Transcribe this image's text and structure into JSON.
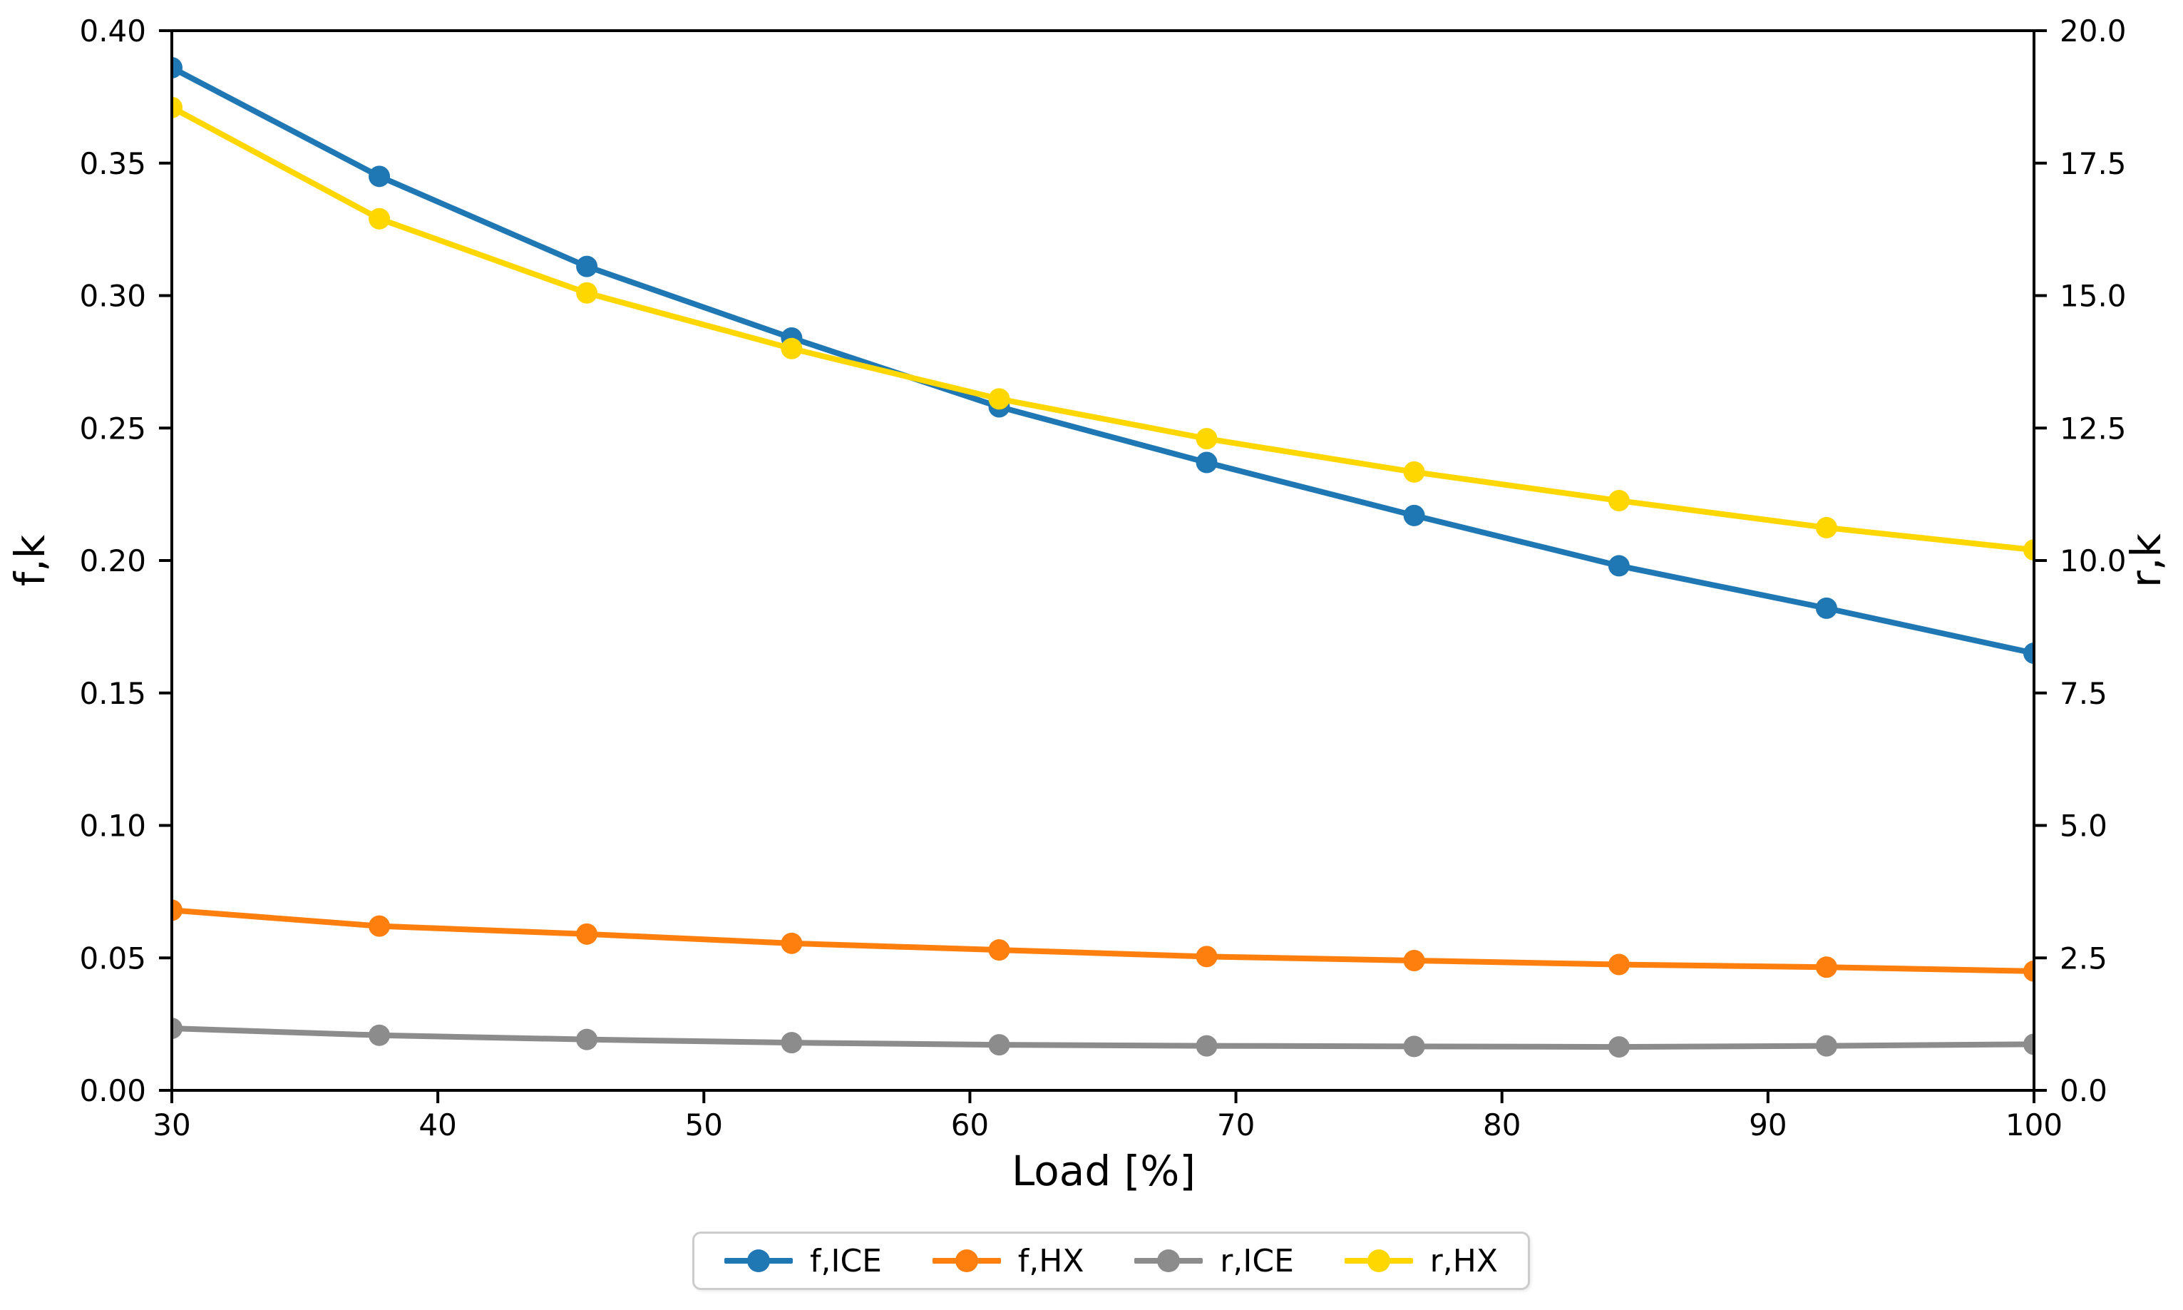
{
  "figure": {
    "background": "#ffffff",
    "spine_color": "#000000"
  },
  "chart_data": {
    "type": "line",
    "x": [
      30,
      37.8,
      45.6,
      53.3,
      61.1,
      68.9,
      76.7,
      84.4,
      92.2,
      100
    ],
    "series": [
      {
        "name": "f,ICE",
        "axis": "left",
        "color": "#1f77b4",
        "values": [
          0.386,
          0.345,
          0.311,
          0.284,
          0.258,
          0.237,
          0.217,
          0.198,
          0.182,
          0.165
        ]
      },
      {
        "name": "f,HX",
        "axis": "left",
        "color": "#ff7f0e",
        "values": [
          0.068,
          0.062,
          0.059,
          0.0555,
          0.053,
          0.0505,
          0.049,
          0.0475,
          0.0465,
          0.045
        ]
      },
      {
        "name": "r,ICE",
        "axis": "right",
        "color": "#8c8c8c",
        "values": [
          1.17,
          1.04,
          0.96,
          0.9,
          0.86,
          0.84,
          0.83,
          0.82,
          0.84,
          0.87
        ]
      },
      {
        "name": "r,HX",
        "axis": "right",
        "color": "#ffd700",
        "values": [
          18.55,
          16.45,
          15.05,
          14.0,
          13.05,
          12.3,
          11.67,
          11.13,
          10.62,
          10.2
        ]
      }
    ],
    "xlabel": "Load [%]",
    "ylabel_left": "f,k",
    "ylabel_right": "r,k",
    "xlim": [
      30,
      100
    ],
    "ylim_left": [
      0.0,
      0.4
    ],
    "ylim_right": [
      0.0,
      20.0
    ],
    "xticks": [
      "30",
      "40",
      "50",
      "60",
      "70",
      "80",
      "90",
      "100"
    ],
    "yticks_left": [
      "0.00",
      "0.05",
      "0.10",
      "0.15",
      "0.20",
      "0.25",
      "0.30",
      "0.35",
      "0.40"
    ],
    "yticks_right": [
      "0.0",
      "2.5",
      "5.0",
      "7.5",
      "10.0",
      "12.5",
      "15.0",
      "17.5",
      "20.0"
    ],
    "grid": false,
    "legend_position": "bottom-center",
    "marker": "circle"
  }
}
